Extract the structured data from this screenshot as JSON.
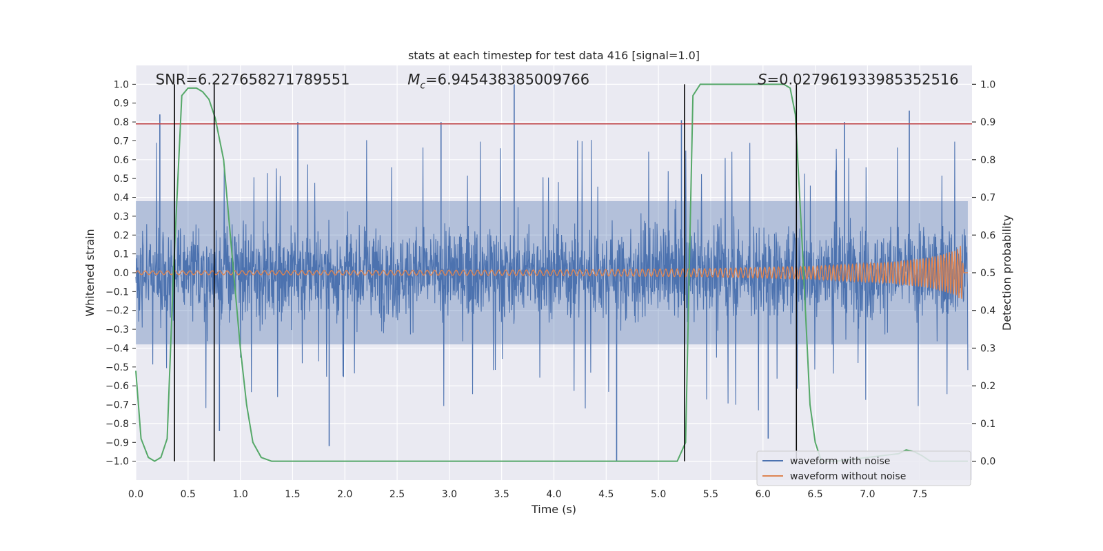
{
  "chart_data": {
    "type": "line",
    "title": "stats at each timestep for test data 416 [signal=1.0]",
    "xlabel": "Time (s)",
    "ylabel_left": "Whitened strain",
    "ylabel_right": "Detection probability",
    "xlim": [
      0.0,
      8.0
    ],
    "ylim_left": [
      -1.1,
      1.1
    ],
    "ylim_right": [
      -0.05,
      1.05
    ],
    "x_ticks": [
      0.0,
      0.5,
      1.0,
      1.5,
      2.0,
      2.5,
      3.0,
      3.5,
      4.0,
      4.5,
      5.0,
      5.5,
      6.0,
      6.5,
      7.0,
      7.5
    ],
    "x_tick_labels": [
      "0.0",
      "0.5",
      "1.0",
      "1.5",
      "2.0",
      "2.5",
      "3.0",
      "3.5",
      "4.0",
      "4.5",
      "5.0",
      "5.5",
      "6.0",
      "6.5",
      "7.0",
      "7.5"
    ],
    "y_left_ticks": [
      1.0,
      0.9,
      0.8,
      0.7,
      0.6,
      0.5,
      0.4,
      0.3,
      0.2,
      0.1,
      0.0,
      -0.1,
      -0.2,
      -0.3,
      -0.4,
      -0.5,
      -0.6,
      -0.7,
      -0.8,
      -0.9,
      -1.0
    ],
    "y_left_tick_labels": [
      "1.0",
      "0.9",
      "0.8",
      "0.7",
      "0.6",
      "0.5",
      "0.4",
      "0.3",
      "0.2",
      "0.1",
      "0.0",
      "−0.1",
      "−0.2",
      "−0.3",
      "−0.4",
      "−0.5",
      "−0.6",
      "−0.7",
      "−0.8",
      "−0.9",
      "−1.0"
    ],
    "y_right_ticks": [
      1.0,
      0.9,
      0.8,
      0.7,
      0.6,
      0.5,
      0.4,
      0.3,
      0.2,
      0.1,
      0.0
    ],
    "y_right_tick_labels": [
      "1.0",
      "0.9",
      "0.8",
      "0.7",
      "0.6",
      "0.5",
      "0.4",
      "0.3",
      "0.2",
      "0.1",
      "0.0"
    ],
    "grid": true,
    "legend_position": "bottom-right",
    "series": [
      {
        "name": "waveform with noise",
        "color": "#4c72b0",
        "axis": "left",
        "description": "dense noisy strain, mostly within ±0.4 with spikes up to ±1.0",
        "envelope_typical": 0.38,
        "notable_spikes": [
          {
            "x": 0.23,
            "y": 0.84
          },
          {
            "x": 1.55,
            "y": 0.8
          },
          {
            "x": 2.92,
            "y": 0.8
          },
          {
            "x": 3.62,
            "y": 1.0
          },
          {
            "x": 5.22,
            "y": 0.81
          },
          {
            "x": 6.78,
            "y": 0.8
          },
          {
            "x": 7.4,
            "y": 0.86
          },
          {
            "x": 0.8,
            "y": -0.84
          },
          {
            "x": 1.85,
            "y": -0.92
          },
          {
            "x": 4.6,
            "y": -1.0
          },
          {
            "x": 6.05,
            "y": -0.88
          }
        ]
      },
      {
        "name": "waveform without noise",
        "color": "#dd8452",
        "axis": "left",
        "description": "chirp signal whose amplitude grows from ~0.01 to ~0.15 ending near 7.9 s",
        "amplitude_points": [
          [
            0.0,
            0.01
          ],
          [
            2.0,
            0.012
          ],
          [
            4.0,
            0.015
          ],
          [
            5.5,
            0.022
          ],
          [
            6.5,
            0.035
          ],
          [
            7.2,
            0.055
          ],
          [
            7.6,
            0.08
          ],
          [
            7.85,
            0.12
          ],
          [
            7.9,
            0.15
          ],
          [
            7.92,
            0.0
          ]
        ]
      },
      {
        "name": "detection probability",
        "color": "#55a868",
        "axis": "right",
        "points": [
          [
            0.0,
            0.24
          ],
          [
            0.05,
            0.06
          ],
          [
            0.12,
            0.01
          ],
          [
            0.18,
            0.0
          ],
          [
            0.24,
            0.01
          ],
          [
            0.3,
            0.06
          ],
          [
            0.36,
            0.5
          ],
          [
            0.44,
            0.97
          ],
          [
            0.5,
            0.99
          ],
          [
            0.58,
            0.99
          ],
          [
            0.64,
            0.98
          ],
          [
            0.7,
            0.96
          ],
          [
            0.76,
            0.91
          ],
          [
            0.84,
            0.8
          ],
          [
            0.92,
            0.55
          ],
          [
            1.0,
            0.3
          ],
          [
            1.06,
            0.15
          ],
          [
            1.12,
            0.05
          ],
          [
            1.2,
            0.01
          ],
          [
            1.3,
            0.0
          ],
          [
            1.5,
            0.0
          ],
          [
            2.0,
            0.0
          ],
          [
            3.0,
            0.0
          ],
          [
            4.0,
            0.0
          ],
          [
            5.0,
            0.0
          ],
          [
            5.18,
            0.0
          ],
          [
            5.26,
            0.05
          ],
          [
            5.33,
            0.97
          ],
          [
            5.4,
            1.0
          ],
          [
            6.2,
            1.0
          ],
          [
            6.26,
            0.99
          ],
          [
            6.31,
            0.92
          ],
          [
            6.38,
            0.55
          ],
          [
            6.45,
            0.15
          ],
          [
            6.5,
            0.05
          ],
          [
            6.56,
            0.0
          ],
          [
            6.7,
            0.0
          ],
          [
            7.3,
            0.02
          ],
          [
            7.37,
            0.03
          ],
          [
            7.45,
            0.025
          ],
          [
            7.52,
            0.015
          ],
          [
            7.6,
            0.0
          ],
          [
            7.96,
            0.0
          ]
        ]
      }
    ],
    "threshold_line": {
      "y_left": 0.79,
      "color": "#c44e52"
    },
    "vertical_markers": [
      0.37,
      0.75,
      5.25,
      6.32
    ],
    "annotations": [
      {
        "label": "SNR=6.227658271789551",
        "x": 0.19,
        "y_right": 1.0
      },
      {
        "label_symbol": "M",
        "label_subscript": "c",
        "label_value": "=6.945438385009766",
        "x": 2.6,
        "y_right": 1.0
      },
      {
        "label_symbol": "S",
        "label_value": "=0.027961933985352516",
        "x": 5.95,
        "y_right": 1.0
      }
    ]
  }
}
